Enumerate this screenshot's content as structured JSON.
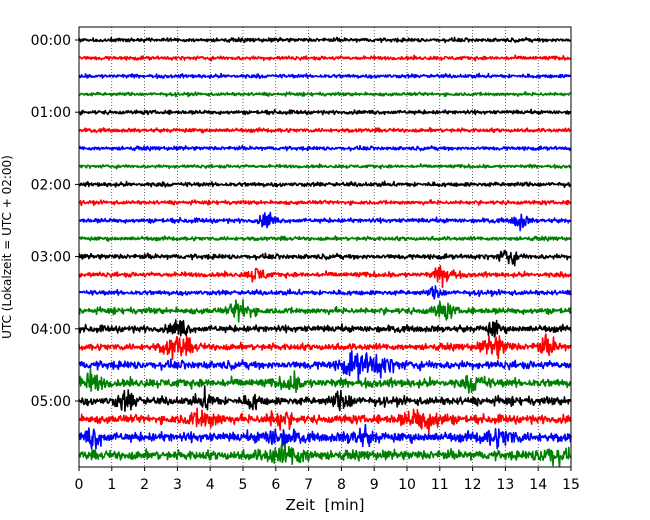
{
  "chart_data": {
    "type": "line",
    "title": "",
    "xlabel": "Zeit  [min]",
    "ylabel": "UTC (Lokalzeit = UTC + 02:00)",
    "xlim": [
      0,
      15
    ],
    "x_ticks": [
      0,
      1,
      2,
      3,
      4,
      5,
      6,
      7,
      8,
      9,
      10,
      11,
      12,
      13,
      14,
      15
    ],
    "y_tick_labels": [
      "00:00",
      "01:00",
      "02:00",
      "03:00",
      "04:00",
      "05:00"
    ],
    "minutes_per_trace": 15,
    "trace_colors": [
      "#000000",
      "#ff0000",
      "#0000ff",
      "#008000"
    ],
    "vertical_grid": "dotted",
    "traces": [
      {
        "start": "00:00",
        "color": "#000000",
        "noise": 0.35,
        "events": []
      },
      {
        "start": "00:15",
        "color": "#ff0000",
        "noise": 0.35,
        "events": []
      },
      {
        "start": "00:30",
        "color": "#0000ff",
        "noise": 0.35,
        "events": []
      },
      {
        "start": "00:45",
        "color": "#008000",
        "noise": 0.3,
        "events": []
      },
      {
        "start": "01:00",
        "color": "#000000",
        "noise": 0.35,
        "events": []
      },
      {
        "start": "01:15",
        "color": "#ff0000",
        "noise": 0.35,
        "events": []
      },
      {
        "start": "01:30",
        "color": "#0000ff",
        "noise": 0.35,
        "events": []
      },
      {
        "start": "01:45",
        "color": "#008000",
        "noise": 0.3,
        "events": []
      },
      {
        "start": "02:00",
        "color": "#000000",
        "noise": 0.4,
        "events": []
      },
      {
        "start": "02:15",
        "color": "#ff0000",
        "noise": 0.35,
        "events": []
      },
      {
        "start": "02:30",
        "color": "#0000ff",
        "noise": 0.4,
        "events": [
          {
            "t": 5.75,
            "amp": 1.6,
            "w": 0.2
          },
          {
            "t": 13.45,
            "amp": 1.6,
            "w": 0.2
          }
        ]
      },
      {
        "start": "02:45",
        "color": "#008000",
        "noise": 0.35,
        "events": []
      },
      {
        "start": "03:00",
        "color": "#000000",
        "noise": 0.45,
        "events": [
          {
            "t": 13.1,
            "amp": 1.5,
            "w": 0.25
          }
        ]
      },
      {
        "start": "03:15",
        "color": "#ff0000",
        "noise": 0.45,
        "events": [
          {
            "t": 5.45,
            "amp": 1.3,
            "w": 0.25
          },
          {
            "t": 11.15,
            "amp": 1.6,
            "w": 0.3
          }
        ]
      },
      {
        "start": "03:30",
        "color": "#0000ff",
        "noise": 0.45,
        "events": [
          {
            "t": 10.9,
            "amp": 1.0,
            "w": 0.2
          }
        ]
      },
      {
        "start": "03:45",
        "color": "#008000",
        "noise": 0.55,
        "events": [
          {
            "t": 4.95,
            "amp": 2.0,
            "w": 0.3
          },
          {
            "t": 11.1,
            "amp": 1.4,
            "w": 0.3
          }
        ]
      },
      {
        "start": "04:00",
        "color": "#000000",
        "noise": 0.6,
        "events": [
          {
            "t": 3.05,
            "amp": 1.6,
            "w": 0.25
          },
          {
            "t": 12.65,
            "amp": 1.3,
            "w": 0.2
          }
        ]
      },
      {
        "start": "04:15",
        "color": "#ff0000",
        "noise": 0.6,
        "events": [
          {
            "t": 3.0,
            "amp": 1.8,
            "w": 0.45
          },
          {
            "t": 12.7,
            "amp": 1.6,
            "w": 0.4
          },
          {
            "t": 14.3,
            "amp": 1.5,
            "w": 0.3
          }
        ]
      },
      {
        "start": "04:30",
        "color": "#0000ff",
        "noise": 0.75,
        "events": [
          {
            "t": 8.4,
            "amp": 1.8,
            "w": 0.4
          },
          {
            "t": 9.1,
            "amp": 1.5,
            "w": 0.5
          }
        ]
      },
      {
        "start": "04:45",
        "color": "#008000",
        "noise": 0.8,
        "events": [
          {
            "t": 0.4,
            "amp": 1.6,
            "w": 0.3
          },
          {
            "t": 6.5,
            "amp": 1.2,
            "w": 0.3
          },
          {
            "t": 12.1,
            "amp": 1.3,
            "w": 0.3
          }
        ]
      },
      {
        "start": "05:00",
        "color": "#000000",
        "noise": 0.75,
        "events": [
          {
            "t": 1.45,
            "amp": 1.6,
            "w": 0.3
          },
          {
            "t": 3.9,
            "amp": 1.5,
            "w": 0.25
          },
          {
            "t": 5.3,
            "amp": 1.3,
            "w": 0.2
          },
          {
            "t": 8.05,
            "amp": 1.5,
            "w": 0.3
          }
        ]
      },
      {
        "start": "05:15",
        "color": "#ff0000",
        "noise": 0.75,
        "events": [
          {
            "t": 3.8,
            "amp": 1.4,
            "w": 0.5
          },
          {
            "t": 6.1,
            "amp": 1.3,
            "w": 0.4
          },
          {
            "t": 10.5,
            "amp": 1.8,
            "w": 0.6
          }
        ]
      },
      {
        "start": "05:30",
        "color": "#0000ff",
        "noise": 0.85,
        "events": [
          {
            "t": 0.45,
            "amp": 1.6,
            "w": 0.25
          },
          {
            "t": 6.1,
            "amp": 1.3,
            "w": 0.5
          },
          {
            "t": 8.6,
            "amp": 1.2,
            "w": 0.4
          },
          {
            "t": 12.8,
            "amp": 1.2,
            "w": 0.5
          }
        ]
      },
      {
        "start": "05:45",
        "color": "#008000",
        "noise": 0.85,
        "events": [
          {
            "t": 6.3,
            "amp": 1.4,
            "w": 0.7
          },
          {
            "t": 14.4,
            "amp": 1.3,
            "w": 0.4
          }
        ]
      }
    ]
  }
}
